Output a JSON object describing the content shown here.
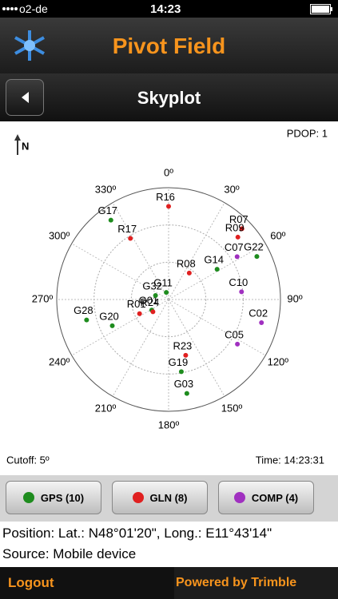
{
  "status_bar": {
    "carrier": "o2-de",
    "time": "14:23"
  },
  "header": {
    "title": "Pivot Field"
  },
  "nav": {
    "title": "Skyplot"
  },
  "skyplot": {
    "type": "polar",
    "pdop": "PDOP: 1",
    "north": "N",
    "elevation_range": [
      90,
      0
    ],
    "rings": [
      0,
      30,
      60
    ],
    "azimuth_ticks": [
      {
        "value": 0,
        "label": "0º"
      },
      {
        "value": 30,
        "label": "30º"
      },
      {
        "value": 60,
        "label": "60º"
      },
      {
        "value": 90,
        "label": "90º"
      },
      {
        "value": 120,
        "label": "120º"
      },
      {
        "value": 150,
        "label": "150º"
      },
      {
        "value": 180,
        "label": "180º"
      },
      {
        "value": 210,
        "label": "210º"
      },
      {
        "value": 240,
        "label": "240º"
      },
      {
        "value": 270,
        "label": "270º"
      },
      {
        "value": 300,
        "label": "300º"
      },
      {
        "value": 330,
        "label": "330º"
      }
    ],
    "series": [
      {
        "name": "GPS (10)",
        "color": "#1e8c1e",
        "satellites": [
          {
            "label": "G17",
            "azimuth": 324,
            "elevation": 11
          },
          {
            "label": "G28",
            "azimuth": 256,
            "elevation": 22
          },
          {
            "label": "G14",
            "azimuth": 58,
            "elevation": 44
          },
          {
            "label": "G22",
            "azimuth": 64,
            "elevation": 11
          },
          {
            "label": "G01",
            "azimuth": 238,
            "elevation": 74
          },
          {
            "label": "G11",
            "azimuth": 342,
            "elevation": 84
          },
          {
            "label": "G32",
            "azimuth": 287,
            "elevation": 79
          },
          {
            "label": "G20",
            "azimuth": 245,
            "elevation": 40
          },
          {
            "label": "G19",
            "azimuth": 170,
            "elevation": 31
          },
          {
            "label": "G03",
            "azimuth": 169,
            "elevation": 13
          }
        ]
      },
      {
        "name": "GLN (8)",
        "color": "#e02020",
        "satellites": [
          {
            "label": "R16",
            "azimuth": 0,
            "elevation": 15
          },
          {
            "label": "R17",
            "azimuth": 328,
            "elevation": 32
          },
          {
            "label": "R07",
            "azimuth": 46,
            "elevation": 8
          },
          {
            "label": "R09",
            "azimuth": 48,
            "elevation": 15
          },
          {
            "label": "R08",
            "azimuth": 38,
            "elevation": 63
          },
          {
            "label": "R24",
            "azimuth": 232,
            "elevation": 74
          },
          {
            "label": "R01",
            "azimuth": 244,
            "elevation": 64
          },
          {
            "label": "R23",
            "azimuth": 163,
            "elevation": 43
          }
        ]
      },
      {
        "name": "COMP (4)",
        "color": "#a030c0",
        "satellites": [
          {
            "label": "C07",
            "azimuth": 58,
            "elevation": 25
          },
          {
            "label": "C10",
            "azimuth": 84,
            "elevation": 31
          },
          {
            "label": "C02",
            "azimuth": 104,
            "elevation": 13
          },
          {
            "label": "C05",
            "azimuth": 123,
            "elevation": 24
          }
        ]
      }
    ],
    "cutoff": "Cutoff: 5º",
    "time": "Time: 14:23:31"
  },
  "info": {
    "position": "Position: Lat.: N48°01'20\", Long.: E11°43'14\"",
    "source": "Source: Mobile device"
  },
  "footer": {
    "logout": "Logout",
    "powered": "Powered by Trimble"
  }
}
